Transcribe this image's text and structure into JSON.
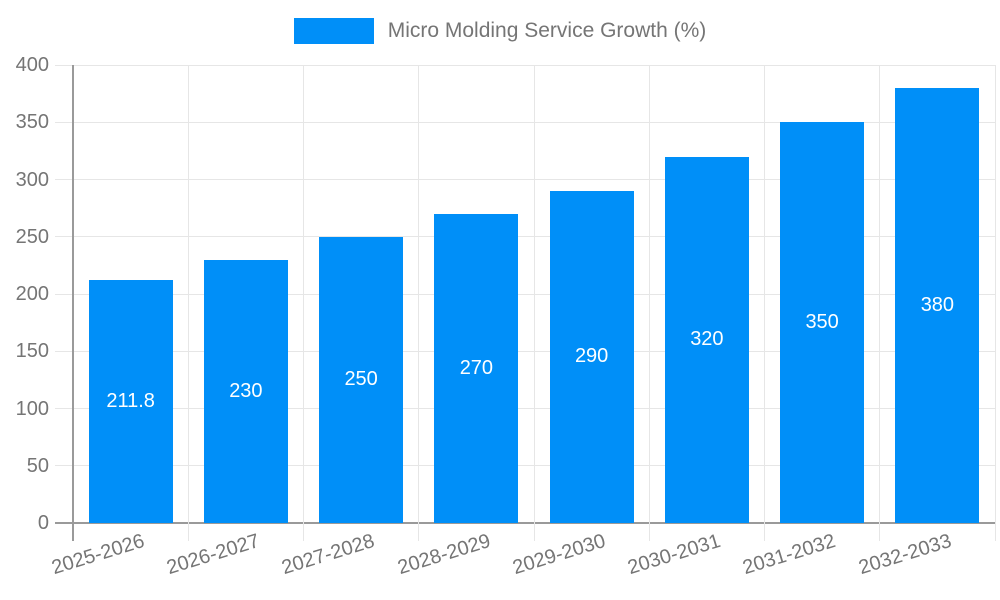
{
  "chart_data": {
    "type": "bar",
    "title": "Micro Molding Service Growth (%)",
    "categories": [
      "2025-2026",
      "2026-2027",
      "2027-2028",
      "2028-2029",
      "2029-2030",
      "2030-2031",
      "2031-2032",
      "2032-2033"
    ],
    "values": [
      211.8,
      230,
      250,
      270,
      290,
      320,
      350,
      380
    ],
    "series": [
      {
        "name": "Micro Molding Service Growth (%)",
        "values": [
          211.8,
          230,
          250,
          270,
          290,
          320,
          350,
          380
        ]
      }
    ],
    "value_labels": [
      "211.8",
      "230",
      "250",
      "270",
      "290",
      "320",
      "350",
      "380"
    ],
    "xlabel": "",
    "ylabel": "",
    "ylim": [
      0,
      400
    ],
    "ytick_step": 50,
    "y_tick_labels": [
      "0",
      "50",
      "100",
      "150",
      "200",
      "250",
      "300",
      "350",
      "400"
    ],
    "legend_position": "top-center",
    "grid": true,
    "x_label_rotation_deg": -17,
    "colors": {
      "bar": "#008FF8",
      "value_label": "#FFFFFF",
      "axis_text": "#757575",
      "gridline": "#E6E6E6",
      "axis_line": "#9A9A9A",
      "background": "#FFFFFF"
    }
  }
}
